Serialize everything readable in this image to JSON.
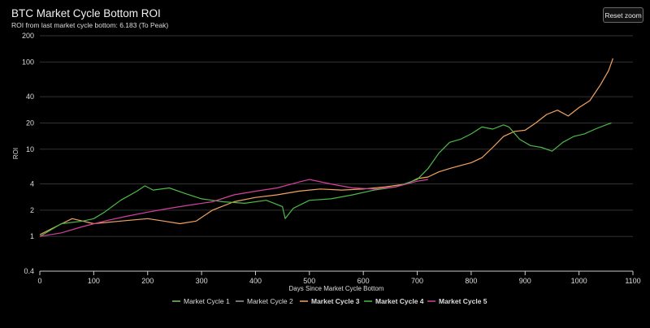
{
  "header": {
    "title": "BTC Market Cycle Bottom ROI",
    "subtitle": "ROI from last market cycle bottom: 6.183 (To Peak)",
    "reset_zoom_label": "Reset zoom"
  },
  "chart_data": {
    "type": "line",
    "title": "BTC Market Cycle Bottom ROI",
    "subtitle": "ROI from last market cycle bottom: 6.183 (To Peak)",
    "xlabel": "Days Since Market Cycle Bottom",
    "ylabel": "ROI",
    "y_scale": "log",
    "xlim": [
      0,
      1100
    ],
    "ylim": [
      0.4,
      200
    ],
    "x_ticks": [
      0,
      100,
      200,
      300,
      400,
      500,
      600,
      700,
      800,
      900,
      1000,
      1100
    ],
    "y_ticks": [
      0.4,
      1,
      2,
      4,
      10,
      20,
      40,
      100,
      200
    ],
    "grid": "horizontal",
    "legend_position": "bottom",
    "series": [
      {
        "name": "Market Cycle 1",
        "color": "#7cc26b",
        "points": []
      },
      {
        "name": "Market Cycle 2",
        "color": "#9a9a9a",
        "points": []
      },
      {
        "name": "Market Cycle 3",
        "color": "#f4a460",
        "points": [
          [
            0,
            1.05
          ],
          [
            30,
            1.3
          ],
          [
            60,
            1.6
          ],
          [
            100,
            1.4
          ],
          [
            150,
            1.5
          ],
          [
            200,
            1.6
          ],
          [
            230,
            1.5
          ],
          [
            260,
            1.4
          ],
          [
            290,
            1.5
          ],
          [
            320,
            2.0
          ],
          [
            360,
            2.5
          ],
          [
            400,
            2.8
          ],
          [
            440,
            3.0
          ],
          [
            480,
            3.3
          ],
          [
            520,
            3.5
          ],
          [
            560,
            3.4
          ],
          [
            600,
            3.5
          ],
          [
            640,
            3.7
          ],
          [
            680,
            4.0
          ],
          [
            700,
            4.6
          ],
          [
            720,
            4.8
          ],
          [
            740,
            5.5
          ],
          [
            760,
            6.0
          ],
          [
            780,
            6.5
          ],
          [
            800,
            7.0
          ],
          [
            820,
            8.0
          ],
          [
            840,
            10.5
          ],
          [
            860,
            14.0
          ],
          [
            880,
            16.0
          ],
          [
            900,
            16.5
          ],
          [
            920,
            20.0
          ],
          [
            940,
            25.0
          ],
          [
            960,
            28.0
          ],
          [
            980,
            24.0
          ],
          [
            1000,
            30.0
          ],
          [
            1020,
            36.0
          ],
          [
            1040,
            55.0
          ],
          [
            1055,
            80.0
          ],
          [
            1063,
            110.0
          ]
        ]
      },
      {
        "name": "Market Cycle 4",
        "color": "#4cbb47",
        "points": [
          [
            0,
            1.0
          ],
          [
            40,
            1.4
          ],
          [
            80,
            1.5
          ],
          [
            100,
            1.6
          ],
          [
            120,
            1.9
          ],
          [
            150,
            2.6
          ],
          [
            180,
            3.3
          ],
          [
            195,
            3.8
          ],
          [
            210,
            3.4
          ],
          [
            240,
            3.6
          ],
          [
            270,
            3.1
          ],
          [
            300,
            2.7
          ],
          [
            340,
            2.5
          ],
          [
            380,
            2.4
          ],
          [
            420,
            2.6
          ],
          [
            450,
            2.2
          ],
          [
            455,
            1.6
          ],
          [
            470,
            2.1
          ],
          [
            500,
            2.6
          ],
          [
            540,
            2.7
          ],
          [
            580,
            3.0
          ],
          [
            620,
            3.4
          ],
          [
            660,
            3.7
          ],
          [
            700,
            4.5
          ],
          [
            720,
            6.0
          ],
          [
            740,
            9.0
          ],
          [
            760,
            12.0
          ],
          [
            780,
            13.0
          ],
          [
            800,
            15.0
          ],
          [
            820,
            18.0
          ],
          [
            840,
            17.0
          ],
          [
            860,
            19.0
          ],
          [
            870,
            18.0
          ],
          [
            890,
            13.0
          ],
          [
            910,
            11.0
          ],
          [
            930,
            10.5
          ],
          [
            950,
            9.5
          ],
          [
            970,
            12.0
          ],
          [
            990,
            14.0
          ],
          [
            1010,
            15.0
          ],
          [
            1030,
            17.0
          ],
          [
            1050,
            19.0
          ],
          [
            1060,
            20.0
          ]
        ]
      },
      {
        "name": "Market Cycle 5",
        "color": "#d6409f",
        "points": [
          [
            0,
            1.0
          ],
          [
            40,
            1.1
          ],
          [
            80,
            1.3
          ],
          [
            120,
            1.5
          ],
          [
            160,
            1.7
          ],
          [
            200,
            1.9
          ],
          [
            240,
            2.1
          ],
          [
            280,
            2.3
          ],
          [
            320,
            2.5
          ],
          [
            360,
            3.0
          ],
          [
            400,
            3.3
          ],
          [
            440,
            3.6
          ],
          [
            480,
            4.2
          ],
          [
            500,
            4.5
          ],
          [
            540,
            4.0
          ],
          [
            580,
            3.6
          ],
          [
            620,
            3.5
          ],
          [
            660,
            3.7
          ],
          [
            700,
            4.3
          ],
          [
            720,
            4.5
          ]
        ]
      }
    ]
  }
}
